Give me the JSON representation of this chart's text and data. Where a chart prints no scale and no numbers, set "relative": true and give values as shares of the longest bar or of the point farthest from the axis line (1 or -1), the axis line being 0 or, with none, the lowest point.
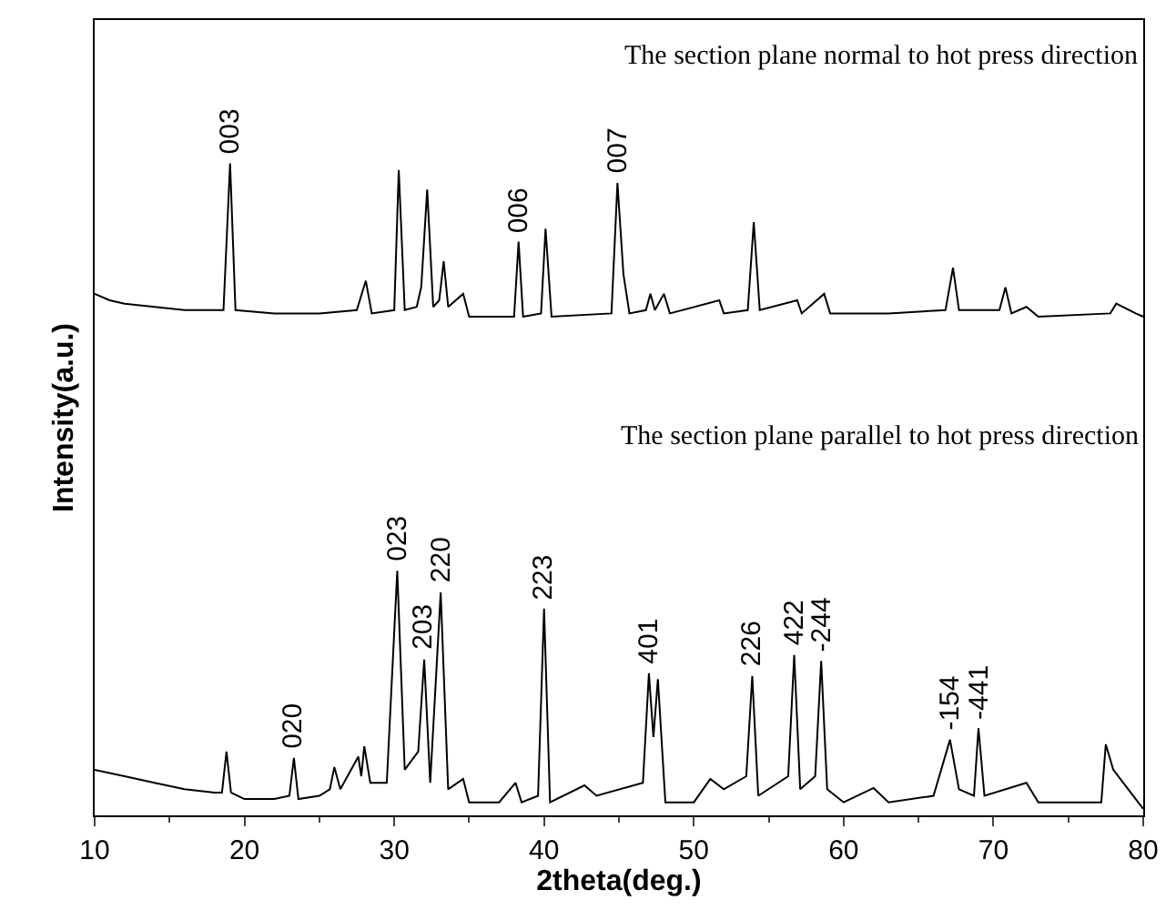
{
  "chart_data": {
    "type": "line",
    "relative": true,
    "xlabel": "2theta(deg.)",
    "ylabel": "Intensity(a.u.)",
    "xlim": [
      10,
      80
    ],
    "xticks": [
      10,
      20,
      30,
      40,
      50,
      60,
      70,
      80
    ],
    "marker": "none",
    "line_style": "solid",
    "series": [
      {
        "color": "#000000",
        "x": [
          10,
          11,
          12,
          14,
          16,
          18.6,
          19.04,
          19.4,
          22,
          25,
          27.5,
          28.1,
          28.5,
          30,
          30.3,
          30.7,
          31.5,
          31.8,
          32.2,
          32.6,
          33.0,
          33.3,
          33.6,
          34.6,
          35.0,
          38.0,
          38.3,
          38.6,
          39.8,
          40.1,
          40.5,
          44.5,
          44.9,
          45.3,
          45.7,
          46.8,
          47.1,
          47.4,
          48.0,
          48.4,
          51.7,
          52,
          53.6,
          54.0,
          54.4,
          56.9,
          57.2,
          58.7,
          59.1,
          63,
          66.8,
          67.3,
          67.7,
          70.4,
          70.8,
          71.2,
          72.2,
          73,
          77.8,
          78.2,
          79.5,
          80
        ],
        "values": [
          0.8,
          0.79,
          0.785,
          0.78,
          0.775,
          0.775,
          1.0,
          0.775,
          0.77,
          0.77,
          0.775,
          0.82,
          0.77,
          0.775,
          0.99,
          0.775,
          0.78,
          0.81,
          0.96,
          0.78,
          0.79,
          0.85,
          0.78,
          0.8,
          0.765,
          0.765,
          0.88,
          0.765,
          0.77,
          0.9,
          0.765,
          0.77,
          0.97,
          0.83,
          0.77,
          0.775,
          0.8,
          0.775,
          0.8,
          0.77,
          0.79,
          0.77,
          0.775,
          0.91,
          0.775,
          0.79,
          0.77,
          0.8,
          0.77,
          0.77,
          0.775,
          0.84,
          0.775,
          0.775,
          0.81,
          0.77,
          0.78,
          0.765,
          0.77,
          0.785,
          0.77,
          0.765
        ]
      },
      {
        "color": "#000000",
        "x": [
          10,
          11,
          12,
          14,
          16,
          18,
          18.5,
          18.8,
          19.1,
          20,
          22,
          23.0,
          23.3,
          23.6,
          25,
          25.7,
          26.0,
          26.4,
          27.6,
          27.8,
          28.0,
          28.4,
          29.5,
          30.2,
          30.7,
          31.6,
          32.0,
          32.4,
          33.1,
          33.6,
          34.6,
          35,
          37,
          38.1,
          38.5,
          39.6,
          40.0,
          40.4,
          42.7,
          43.5,
          46.6,
          47.0,
          47.3,
          47.6,
          48.1,
          50,
          51.1,
          52,
          53.5,
          53.9,
          54.3,
          56.3,
          56.7,
          57.1,
          58.1,
          58.5,
          58.9,
          60,
          62.0,
          63,
          66,
          67.1,
          67.7,
          68.7,
          69.0,
          69.4,
          72.2,
          73,
          77.2,
          77.5,
          78,
          79,
          80
        ],
        "values": [
          0.07,
          0.065,
          0.06,
          0.05,
          0.04,
          0.035,
          0.035,
          0.098,
          0.035,
          0.025,
          0.025,
          0.03,
          0.088,
          0.025,
          0.03,
          0.04,
          0.074,
          0.04,
          0.09,
          0.06,
          0.106,
          0.05,
          0.05,
          0.375,
          0.07,
          0.098,
          0.239,
          0.05,
          0.342,
          0.04,
          0.056,
          0.02,
          0.02,
          0.05,
          0.02,
          0.03,
          0.317,
          0.02,
          0.046,
          0.03,
          0.05,
          0.218,
          0.12,
          0.209,
          0.02,
          0.02,
          0.056,
          0.04,
          0.06,
          0.214,
          0.03,
          0.06,
          0.246,
          0.04,
          0.06,
          0.237,
          0.04,
          0.02,
          0.042,
          0.02,
          0.03,
          0.116,
          0.04,
          0.03,
          0.134,
          0.03,
          0.05,
          0.02,
          0.02,
          0.109,
          0.07,
          0.04,
          0.01
        ]
      }
    ],
    "annotations": [
      "The section plane normal to hot press direction",
      "The section plane parallel to hot press direction",
      {
        "text": "003",
        "x": 19.04,
        "y": 1.0
      },
      {
        "text": "006",
        "x": 38.3,
        "y": 0.88
      },
      {
        "text": "007",
        "x": 44.9,
        "y": 0.97
      },
      {
        "text": "020",
        "x": 23.3,
        "y": 0.088
      },
      {
        "text": "023",
        "x": 30.2,
        "y": 0.375
      },
      {
        "text": "203",
        "x": 32.0,
        "y": 0.239
      },
      {
        "text": "220",
        "x": 33.1,
        "y": 0.342
      },
      {
        "text": "223",
        "x": 40.0,
        "y": 0.317
      },
      {
        "text": "401",
        "x": 47.0,
        "y": 0.218
      },
      {
        "text": "226",
        "x": 53.9,
        "y": 0.214
      },
      {
        "text": "422",
        "x": 56.7,
        "y": 0.246
      },
      {
        "text": "-244",
        "x": 58.5,
        "y": 0.237
      },
      {
        "text": "-154",
        "x": 67.1,
        "y": 0.116
      },
      {
        "text": "-441",
        "x": 69.0,
        "y": 0.134
      }
    ]
  }
}
